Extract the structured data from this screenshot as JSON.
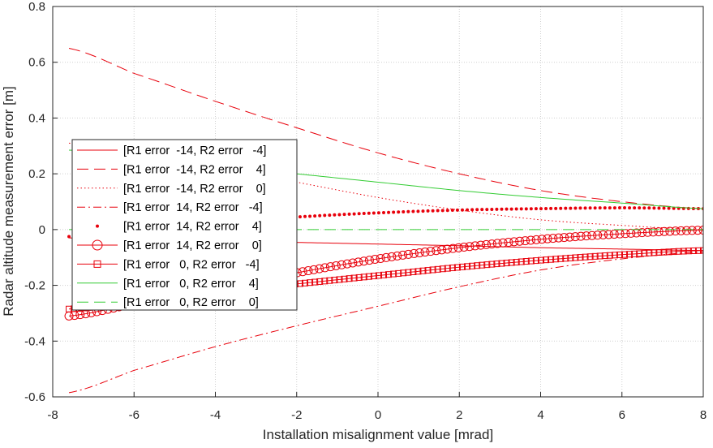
{
  "chart_data": {
    "type": "line",
    "xlabel": "Installation misalignment value [mrad]",
    "ylabel": "Radar altitude measurement error [m]",
    "xlim": [
      -8,
      8
    ],
    "ylim": [
      -0.6,
      0.8
    ],
    "xticks": [
      -8,
      -6,
      -4,
      -2,
      0,
      2,
      4,
      6,
      8
    ],
    "yticks": [
      -0.6,
      -0.4,
      -0.2,
      0,
      0.2,
      0.4,
      0.6,
      0.8
    ],
    "xrange": [
      -7.6,
      8
    ],
    "grid": "dotted",
    "legend_position": "middle-left",
    "series": [
      {
        "name": "[R1 error  -14, R2 error   -4]",
        "color": "#e8000b",
        "style": "solid",
        "marker": "none",
        "x": [
          -7.6,
          -6,
          -4,
          -2,
          0,
          2,
          4,
          6,
          8
        ],
        "y": [
          -0.03,
          -0.034,
          -0.04,
          -0.046,
          -0.052,
          -0.058,
          -0.065,
          -0.07,
          -0.075
        ]
      },
      {
        "name": "[R1 error  -14, R2 error    4]",
        "color": "#e8000b",
        "style": "dashed",
        "marker": "none",
        "x": [
          -7.6,
          -6,
          -4,
          -2,
          0,
          2,
          4,
          6,
          8
        ],
        "y": [
          0.65,
          0.56,
          0.46,
          0.365,
          0.275,
          0.2,
          0.14,
          0.1,
          0.075
        ]
      },
      {
        "name": "[R1 error  -14, R2 error    0]",
        "color": "#e8000b",
        "style": "dotted",
        "marker": "none",
        "x": [
          -7.6,
          -6,
          -4,
          -2,
          0,
          2,
          4,
          6,
          8
        ],
        "y": [
          0.31,
          0.27,
          0.225,
          0.17,
          0.115,
          0.07,
          0.035,
          0.015,
          0.0
        ]
      },
      {
        "name": "[R1 error  14, R2 error   -4]",
        "color": "#e8000b",
        "style": "dashdot",
        "marker": "none",
        "x": [
          -7.6,
          -6,
          -4,
          -2,
          0,
          2,
          4,
          6,
          8
        ],
        "y": [
          -0.585,
          -0.505,
          -0.42,
          -0.345,
          -0.275,
          -0.205,
          -0.145,
          -0.105,
          -0.08
        ]
      },
      {
        "name": "[R1 error  14, R2 error    4]",
        "color": "#e8000b",
        "style": "none",
        "marker": "dot",
        "x": [
          -7.6,
          -6,
          -4,
          -2,
          0,
          2,
          4,
          6,
          8
        ],
        "y": [
          -0.025,
          -0.005,
          0.025,
          0.045,
          0.06,
          0.07,
          0.075,
          0.078,
          0.075
        ]
      },
      {
        "name": "[R1 error  14, R2 error    0]",
        "color": "#e8000b",
        "style": "solid",
        "marker": "circle",
        "x": [
          -7.6,
          -6,
          -4,
          -2,
          0,
          2,
          4,
          6,
          8
        ],
        "y": [
          -0.31,
          -0.265,
          -0.21,
          -0.155,
          -0.105,
          -0.065,
          -0.035,
          -0.015,
          -0.002
        ]
      },
      {
        "name": "[R1 error   0, R2 error   -4]",
        "color": "#e8000b",
        "style": "solid",
        "marker": "square",
        "x": [
          -7.6,
          -6,
          -4,
          -2,
          0,
          2,
          4,
          6,
          8
        ],
        "y": [
          -0.285,
          -0.26,
          -0.225,
          -0.195,
          -0.165,
          -0.135,
          -0.11,
          -0.09,
          -0.075
        ]
      },
      {
        "name": "[R1 error   0, R2 error    4]",
        "color": "#33cc33",
        "style": "solid",
        "marker": "none",
        "x": [
          -7.6,
          -6,
          -4,
          -2,
          0,
          2,
          4,
          6,
          8
        ],
        "y": [
          0.285,
          0.26,
          0.23,
          0.2,
          0.17,
          0.14,
          0.115,
          0.095,
          0.075
        ]
      },
      {
        "name": "[R1 error   0, R2 error    0]",
        "color": "#33cc33",
        "style": "dashed",
        "marker": "none",
        "x": [
          -7.6,
          -6,
          -4,
          -2,
          0,
          2,
          4,
          6,
          8
        ],
        "y": [
          0,
          0,
          0,
          0,
          0,
          0,
          0,
          0,
          0
        ]
      }
    ]
  }
}
